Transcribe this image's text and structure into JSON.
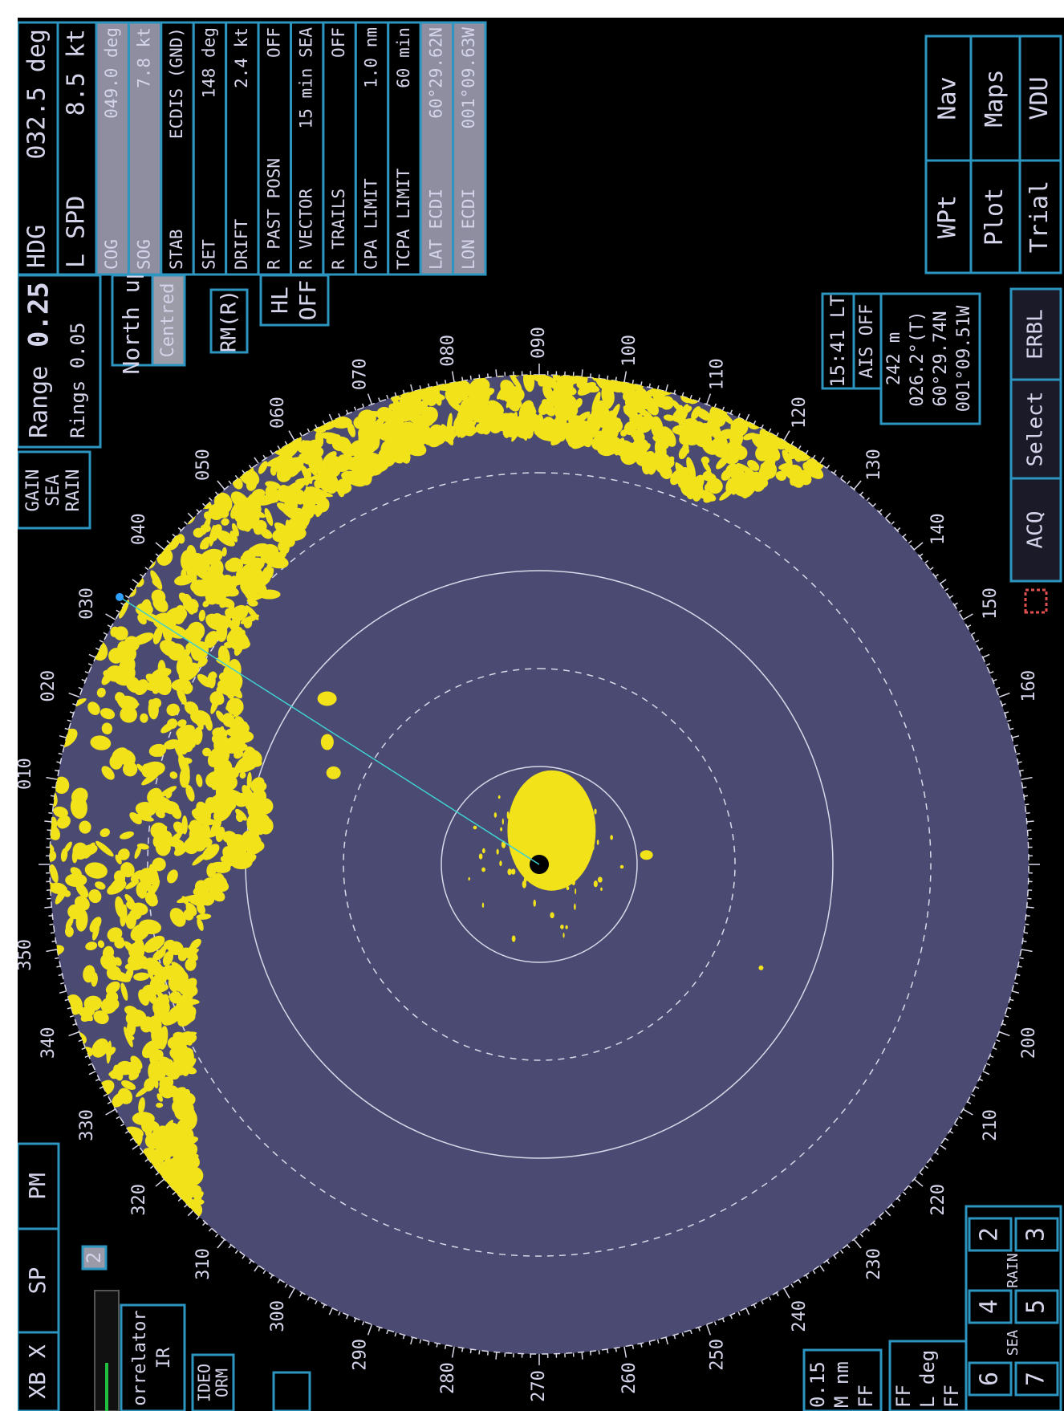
{
  "top_left": {
    "buttons": [
      "XB X",
      "SP",
      "PM"
    ],
    "channel": "2",
    "correlator": [
      "orrelator",
      "IR"
    ],
    "video": [
      "IDEO",
      "ORM"
    ]
  },
  "gain_panel": [
    "GAIN",
    "SEA",
    "RAIN"
  ],
  "range_panel": {
    "range_label": "Range",
    "range_value": "0.25",
    "rings": "Rings  0.05"
  },
  "orientation": {
    "mode": "North up",
    "centre": "Centred",
    "motion": "RM(R)",
    "heading_line": [
      "HL",
      "OFF"
    ]
  },
  "own_ship": {
    "rows": [
      [
        "HDG",
        "032.5 deg"
      ],
      [
        "L SPD",
        "8.5 kt"
      ]
    ]
  },
  "nav_table": {
    "rows": [
      [
        "COG",
        "049.0 deg"
      ],
      [
        "SOG",
        "7.8 kt"
      ],
      [
        "STAB",
        "ECDIS (GND)"
      ],
      [
        "SET",
        "148 deg"
      ],
      [
        "DRIFT",
        "2.4 kt"
      ],
      [
        "R PAST POSN",
        "OFF"
      ],
      [
        "R VECTOR",
        "15 min SEA"
      ],
      [
        "R TRAILS",
        "OFF"
      ],
      [
        "CPA LIMIT",
        "1.0 nm"
      ],
      [
        "TCPA LIMIT",
        "60 min"
      ],
      [
        "LAT ECDI",
        "60°29.62N"
      ],
      [
        "LON ECDI",
        "001°09.63W"
      ]
    ]
  },
  "cursor_panel": {
    "time": "15:41 LT",
    "ais": "AIS OFF",
    "readout": [
      "242 m",
      "026.2°(T)",
      "60°29.74N",
      "001°09.51W"
    ]
  },
  "target_buttons": [
    "ACQ",
    "Select",
    "ERBL"
  ],
  "menu_buttons": [
    [
      "WPt",
      "Nav"
    ],
    [
      "Plot",
      "Maps"
    ],
    [
      "Trial",
      "VDU"
    ]
  ],
  "bottom_left": {
    "ebl": [
      "0.15",
      "M nm",
      "FF"
    ],
    "ebl2": [
      "FF",
      "L deg",
      "FF"
    ],
    "keypad": [
      [
        "6",
        "4",
        "2"
      ],
      [
        "7",
        "5",
        "3"
      ]
    ],
    "keypad_labels": [
      "SEA",
      "RAIN"
    ]
  },
  "bearing_labels": [
    "260",
    "270",
    "280",
    "290",
    "300",
    "310",
    "320",
    "330",
    "340",
    "350",
    "010",
    "020",
    "030",
    "040",
    "050",
    "060",
    "070",
    "080",
    "090",
    "100",
    "110",
    "120",
    "130",
    "140",
    "150",
    "160",
    "200",
    "210",
    "220",
    "230",
    "240",
    "250"
  ]
}
